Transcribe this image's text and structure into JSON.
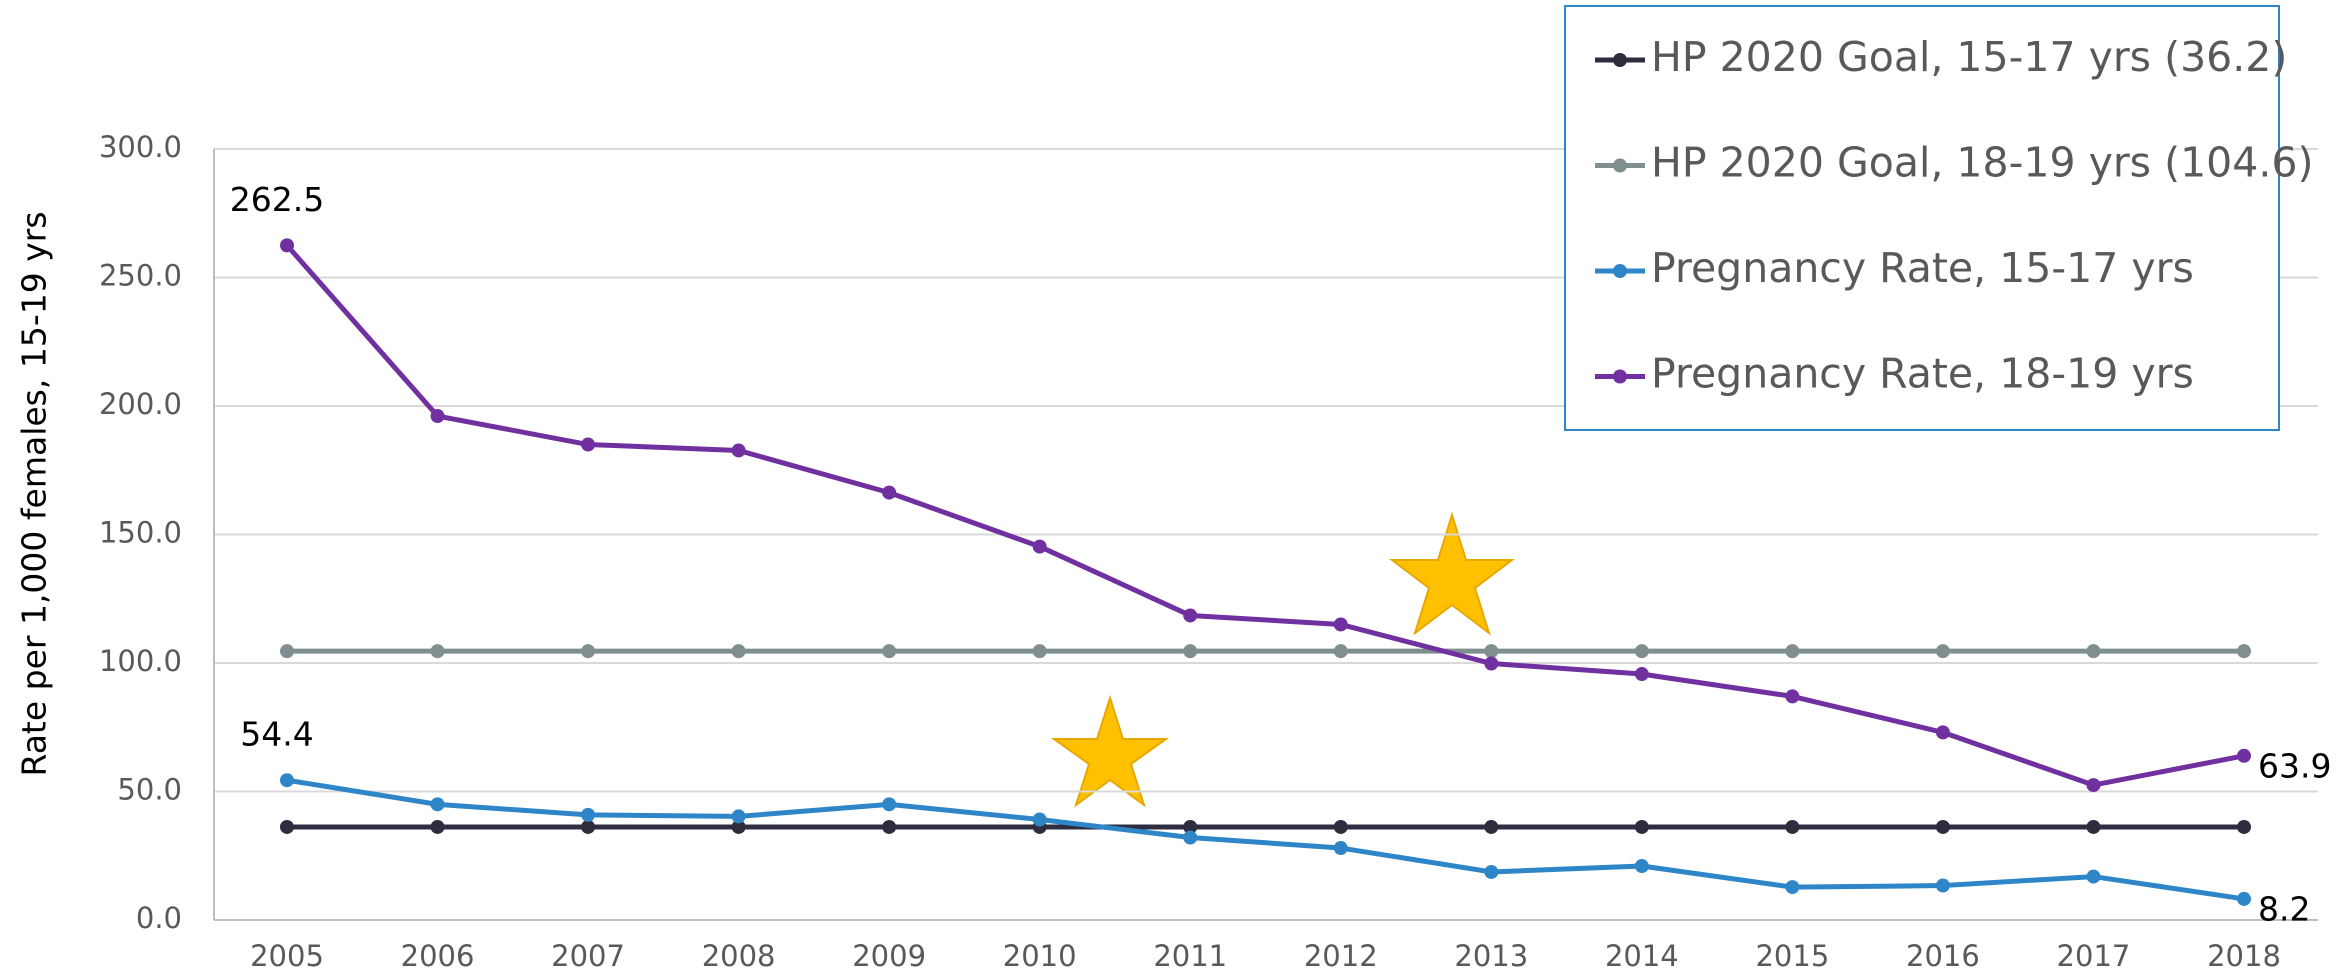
{
  "chart_data": {
    "type": "line",
    "ylabel": "Rate per 1,000 females, 15-19 yrs",
    "categories": [
      "2005",
      "2006",
      "2007",
      "2008",
      "2009",
      "2010",
      "2011",
      "2012",
      "2013",
      "2014",
      "2015",
      "2016",
      "2017",
      "2018"
    ],
    "series": [
      {
        "name": "HP 2020 Goal, 15-17 yrs (36.2)",
        "color": "#2e2d40",
        "values": [
          36.2,
          36.2,
          36.2,
          36.2,
          36.2,
          36.2,
          36.2,
          36.2,
          36.2,
          36.2,
          36.2,
          36.2,
          36.2,
          36.2
        ]
      },
      {
        "name": "HP 2020 Goal, 18-19 yrs (104.6)",
        "color": "#7f8f8f",
        "values": [
          104.6,
          104.6,
          104.6,
          104.6,
          104.6,
          104.6,
          104.6,
          104.6,
          104.6,
          104.6,
          104.6,
          104.6,
          104.6,
          104.6
        ]
      },
      {
        "name": "Pregnancy Rate, 15-17 yrs",
        "color": "#2e86c8",
        "values": [
          54.4,
          45.0,
          40.9,
          40.3,
          45.0,
          39.1,
          32.1,
          28.0,
          18.7,
          21.0,
          12.8,
          13.4,
          16.9,
          8.2
        ],
        "value_labels": [
          "54.4",
          null,
          null,
          null,
          null,
          null,
          null,
          null,
          null,
          null,
          null,
          null,
          null,
          "8.2"
        ]
      },
      {
        "name": "Pregnancy Rate, 18-19 yrs",
        "color": "#7030a0",
        "values": [
          262.5,
          196.1,
          185.0,
          182.7,
          166.3,
          145.3,
          118.5,
          115.0,
          99.8,
          95.7,
          87.0,
          73.0,
          52.5,
          63.9
        ],
        "value_labels": [
          "262.5",
          null,
          null,
          null,
          null,
          null,
          null,
          null,
          null,
          null,
          null,
          null,
          null,
          "63.9"
        ]
      }
    ],
    "ylim": [
      0,
      300
    ],
    "yticks": [
      {
        "value": 0,
        "label": "0.0"
      },
      {
        "value": 50,
        "label": "50.0"
      },
      {
        "value": 100,
        "label": "100.0"
      },
      {
        "value": 150,
        "label": "150.0"
      },
      {
        "value": 200,
        "label": "200.0"
      },
      {
        "value": 250,
        "label": "250.0"
      },
      {
        "value": 300,
        "label": "300.0"
      }
    ],
    "grid": true,
    "legend": "top-right"
  }
}
